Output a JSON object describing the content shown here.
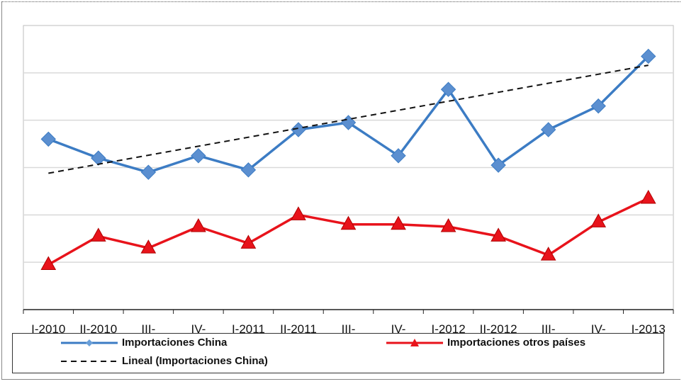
{
  "chart_data": {
    "type": "line",
    "categories": [
      "I-2010",
      "II-2010",
      "III-",
      "IV-",
      "I-2011",
      "II-2011",
      "III-",
      "IV-",
      "I-2012",
      "II-2012",
      "III-",
      "IV-",
      "I-2013"
    ],
    "series": [
      {
        "name": "Importaciones China",
        "color": "#3c7cc4",
        "marker": "diamond",
        "values": [
          52,
          44,
          38,
          45,
          39,
          56,
          59,
          45,
          73,
          41,
          56,
          66,
          87
        ]
      },
      {
        "name": "Importaciones otros países",
        "color": "#e8131b",
        "marker": "triangle",
        "values": [
          -1,
          11,
          6,
          15,
          8,
          20,
          16,
          16,
          15,
          11,
          3,
          17,
          27
        ]
      },
      {
        "name": "Lineal (Importaciones China)",
        "color": "#111111",
        "style": "dashed",
        "trendline_of": "Importaciones China",
        "values": [
          37.6,
          41.4,
          45.2,
          49.0,
          52.8,
          56.6,
          60.4,
          64.2,
          68.0,
          71.8,
          75.6,
          79.4,
          83.2
        ]
      }
    ],
    "ylim": [
      -20,
      100
    ],
    "y_gridlines": [
      0,
      20,
      40,
      60,
      80
    ],
    "y_tick_labels_visible": false,
    "grid": true,
    "legend_position": "bottom"
  },
  "legend": {
    "china": "Importaciones China",
    "otros": "Importaciones otros países",
    "lineal": "Lineal (Importaciones China)"
  },
  "colors": {
    "china": "#3c7cc4",
    "otros": "#e8131b",
    "trend": "#111111",
    "grid": "#d9d9d9"
  }
}
